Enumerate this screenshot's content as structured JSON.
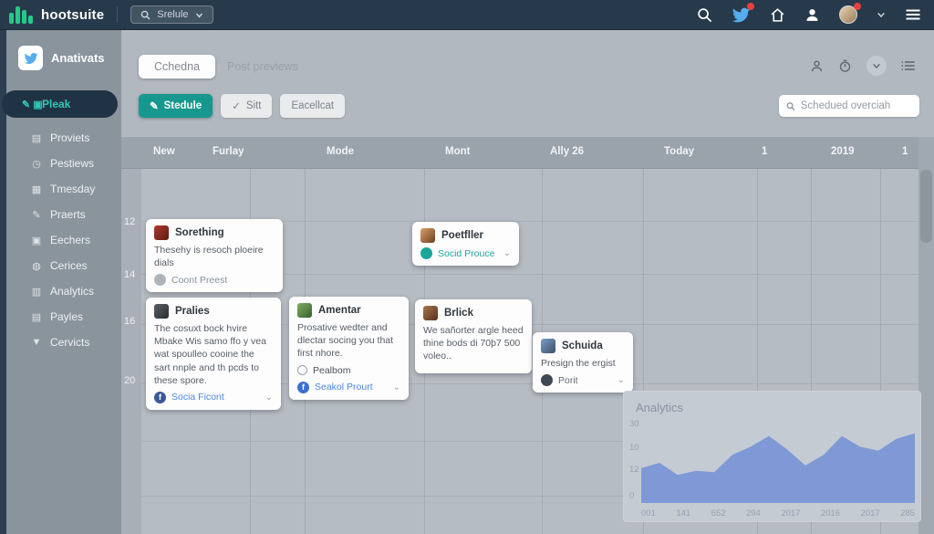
{
  "colors": {
    "navbar_bg": "#273a4b",
    "brand_green": "#27c98a",
    "accent_teal": "#17988e",
    "active_item_teal": "#2fc7b7",
    "twitter_blue": "#55acee",
    "notification_red": "#e8413c",
    "chart_blue": "#7e99d6"
  },
  "navbar": {
    "logo_text": "hootsuite",
    "search_label": "Srelule"
  },
  "sidebar": {
    "account_name": "Anativats",
    "items": [
      {
        "label": "Pleak",
        "glyph": "✎ ▣",
        "icon_name": "compose-icon",
        "active": true
      },
      {
        "label": "Proviets",
        "glyph": "▤",
        "icon_name": "document-icon",
        "active": false
      },
      {
        "label": "Pestiews",
        "glyph": "◷",
        "icon_name": "clock-icon",
        "active": false
      },
      {
        "label": "Tmesday",
        "glyph": "▦",
        "icon_name": "calendar-icon",
        "active": false
      },
      {
        "label": "Praerts",
        "glyph": "✎",
        "icon_name": "pencil-icon",
        "active": false
      },
      {
        "label": "Eechers",
        "glyph": "▣",
        "icon_name": "card-icon",
        "active": false
      },
      {
        "label": "Cerices",
        "glyph": "◍",
        "icon_name": "globe-icon",
        "active": false
      },
      {
        "label": "Analytics",
        "glyph": "▥",
        "icon_name": "analytics-icon",
        "active": false
      },
      {
        "label": "Payles",
        "glyph": "▤",
        "icon_name": "card-icon",
        "active": false
      },
      {
        "label": "Cervicts",
        "glyph": "▼",
        "icon_name": "funnel-icon",
        "active": false
      }
    ]
  },
  "header": {
    "tab_active": "Cchedna",
    "tab_inactive": "Post previews",
    "buttons": [
      {
        "label": "Stedule"
      },
      {
        "label": "Sitt"
      },
      {
        "label": "Eacellcat"
      }
    ],
    "search_placeholder": "Schedued overciah"
  },
  "calendar": {
    "day_headers": [
      "New",
      "Furlay",
      "Mode",
      "Mont",
      "Ally 26",
      "Today",
      "1",
      "2019",
      "1"
    ],
    "time_labels": [
      "12",
      "14",
      "16",
      "20"
    ]
  },
  "cards": [
    {
      "title": "Sorething",
      "body": "Thesehy is resoch ploeire dials",
      "mid": null,
      "footer_label": "Coont Preest",
      "footer_color": "#8b929b",
      "footer_icon_bg": "#aeb4bb",
      "footer_icon_letter": "",
      "avatar_from": "#b03a2e",
      "avatar_to": "#5e1b14",
      "chevron": false
    },
    {
      "title": "Poetfller",
      "body": "",
      "mid": null,
      "footer_label": "Socid Prouce",
      "footer_color": "#1ba59b",
      "footer_icon_bg": "#1ba59b",
      "footer_icon_letter": "",
      "avatar_from": "#d9a066",
      "avatar_to": "#6e4124",
      "chevron": true
    },
    {
      "title": "Pralies",
      "body": "The cosuxt bock hvire Mbake Wis samo ffo y vea wat spoulleo cooine the sart nnple and th pcds to these spore.",
      "mid": null,
      "footer_label": "Socia Ficont",
      "footer_color": "#4a86e8",
      "footer_icon_bg": "#3b5998",
      "footer_icon_letter": "f",
      "avatar_from": "#5a5f66",
      "avatar_to": "#2a2e33",
      "chevron": true
    },
    {
      "title": "Amentar",
      "body": "Prosative wedter and dlectar socing you that first nhore.",
      "mid": "Pealbom",
      "footer_label": "Seakol Prourt",
      "footer_color": "#4a86e8",
      "footer_icon_bg": "#3d6fd1",
      "footer_icon_letter": "f",
      "avatar_from": "#7fae5f",
      "avatar_to": "#35602f",
      "chevron": true
    },
    {
      "title": "Brlick",
      "body": "We sañorter argle heed thine bods di 70þ7 500 voleo..",
      "mid": null,
      "footer_label": null,
      "footer_color": null,
      "footer_icon_bg": null,
      "footer_icon_letter": "",
      "avatar_from": "#a9764f",
      "avatar_to": "#53311b",
      "chevron": false
    },
    {
      "title": "Schuida",
      "body": "Presign the ergist",
      "mid": null,
      "footer_label": "Porit",
      "footer_color": "#636c76",
      "footer_icon_bg": "#3e4752",
      "footer_icon_letter": "",
      "avatar_from": "#7a9ec9",
      "avatar_to": "#3c5068",
      "chevron": true
    }
  ],
  "chart_data": {
    "type": "area",
    "title": "Analytics",
    "x_labels": [
      "001",
      "141",
      "652",
      "294",
      "2017",
      "2016",
      "2017",
      "285"
    ],
    "y_labels": [
      "30",
      "10",
      "12",
      "0"
    ],
    "values": [
      13,
      15,
      10.5,
      12,
      11.5,
      18,
      21,
      25,
      20,
      14,
      18,
      25,
      21,
      19.5,
      24,
      26
    ],
    "ylim": [
      0,
      30
    ],
    "area_color": "#7e99d6",
    "legend": null,
    "grid": false
  }
}
